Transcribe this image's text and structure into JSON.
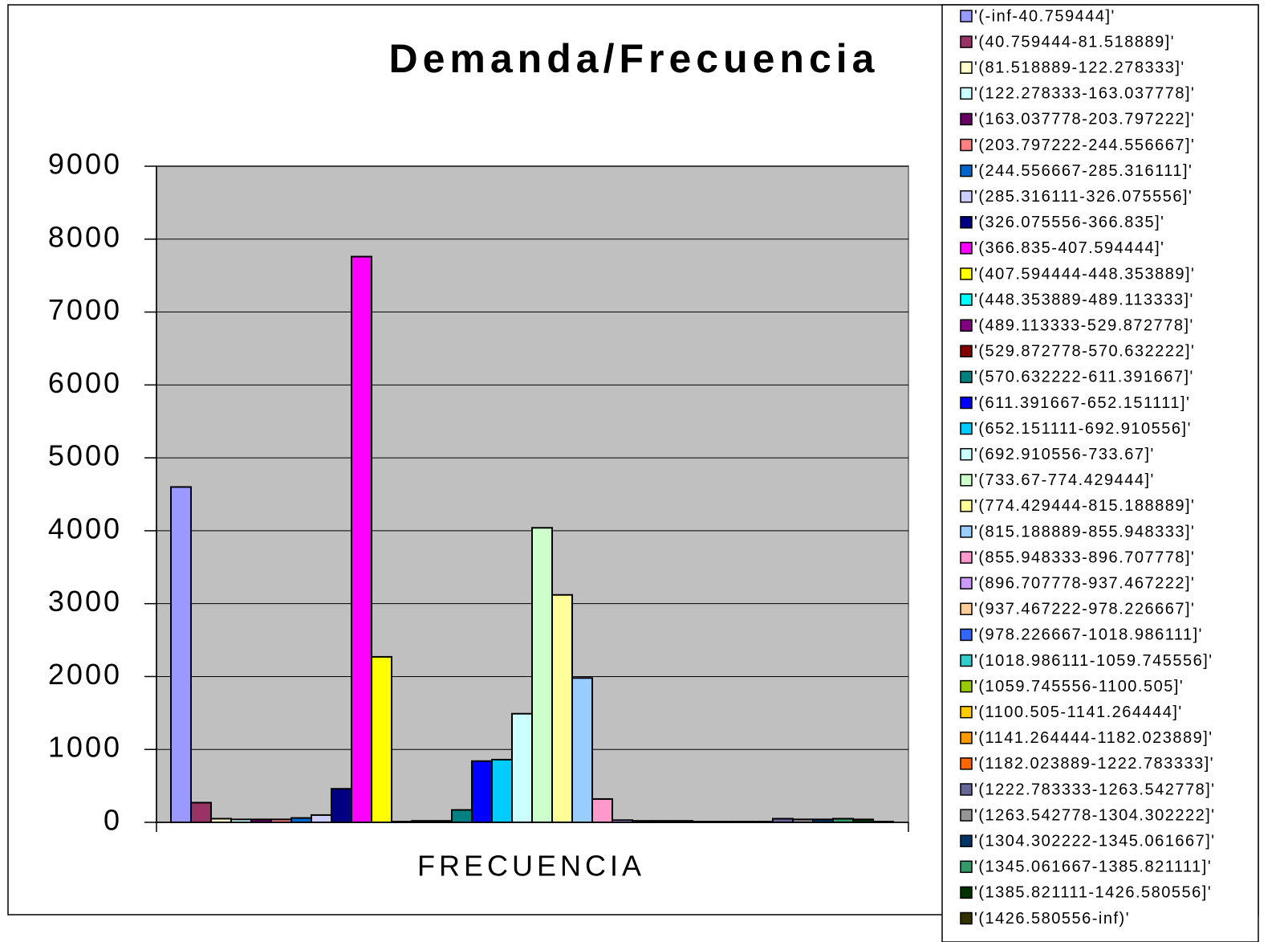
{
  "chart_data": {
    "type": "bar",
    "title": "Demanda/Frecuencia",
    "categories": [
      "FRECUENCIA"
    ],
    "ylim": [
      0,
      9000
    ],
    "yticks": [
      0,
      1000,
      2000,
      3000,
      4000,
      5000,
      6000,
      7000,
      8000,
      9000
    ],
    "grid": true,
    "series": [
      {
        "name": "'(-inf-40.759444]'",
        "color": "#9999ff",
        "values": [
          4600
        ]
      },
      {
        "name": "'(40.759444-81.518889]'",
        "color": "#993366",
        "values": [
          270
        ]
      },
      {
        "name": "'(81.518889-122.278333]'",
        "color": "#ffffcc",
        "values": [
          50
        ]
      },
      {
        "name": "'(122.278333-163.037778]'",
        "color": "#ccffff",
        "values": [
          40
        ]
      },
      {
        "name": "'(163.037778-203.797222]'",
        "color": "#660066",
        "values": [
          40
        ]
      },
      {
        "name": "'(203.797222-244.556667]'",
        "color": "#ff8080",
        "values": [
          40
        ]
      },
      {
        "name": "'(244.556667-285.316111]'",
        "color": "#0066cc",
        "values": [
          60
        ]
      },
      {
        "name": "'(285.316111-326.075556]'",
        "color": "#ccccff",
        "values": [
          100
        ]
      },
      {
        "name": "'(326.075556-366.835]'",
        "color": "#000080",
        "values": [
          460
        ]
      },
      {
        "name": "'(366.835-407.594444]'",
        "color": "#ff00ff",
        "values": [
          7760
        ]
      },
      {
        "name": "'(407.594444-448.353889]'",
        "color": "#ffff00",
        "values": [
          2270
        ]
      },
      {
        "name": "'(448.353889-489.113333]'",
        "color": "#00ffff",
        "values": [
          10
        ]
      },
      {
        "name": "'(489.113333-529.872778]'",
        "color": "#800080",
        "values": [
          20
        ]
      },
      {
        "name": "'(529.872778-570.632222]'",
        "color": "#800000",
        "values": [
          20
        ]
      },
      {
        "name": "'(570.632222-611.391667]'",
        "color": "#008080",
        "values": [
          170
        ]
      },
      {
        "name": "'(611.391667-652.151111]'",
        "color": "#0000ff",
        "values": [
          840
        ]
      },
      {
        "name": "'(652.151111-692.910556]'",
        "color": "#00ccff",
        "values": [
          860
        ]
      },
      {
        "name": "'(692.910556-733.67]'",
        "color": "#ccffff",
        "values": [
          1490
        ]
      },
      {
        "name": "'(733.67-774.429444]'",
        "color": "#ccffcc",
        "values": [
          4040
        ]
      },
      {
        "name": "'(774.429444-815.188889]'",
        "color": "#ffff99",
        "values": [
          3120
        ]
      },
      {
        "name": "'(815.188889-855.948333]'",
        "color": "#99ccff",
        "values": [
          1980
        ]
      },
      {
        "name": "'(855.948333-896.707778]'",
        "color": "#ff99cc",
        "values": [
          320
        ]
      },
      {
        "name": "'(896.707778-937.467222]'",
        "color": "#cc99ff",
        "values": [
          30
        ]
      },
      {
        "name": "'(937.467222-978.226667]'",
        "color": "#ffcc99",
        "values": [
          20
        ]
      },
      {
        "name": "'(978.226667-1018.986111]'",
        "color": "#3366ff",
        "values": [
          20
        ]
      },
      {
        "name": "'(1018.986111-1059.745556]'",
        "color": "#33cccc",
        "values": [
          20
        ]
      },
      {
        "name": "'(1059.745556-1100.505]'",
        "color": "#99cc00",
        "values": [
          10
        ]
      },
      {
        "name": "'(1100.505-1141.264444]'",
        "color": "#ffcc00",
        "values": [
          10
        ]
      },
      {
        "name": "'(1141.264444-1182.023889]'",
        "color": "#ff9900",
        "values": [
          10
        ]
      },
      {
        "name": "'(1182.023889-1222.783333]'",
        "color": "#ff6600",
        "values": [
          10
        ]
      },
      {
        "name": "'(1222.783333-1263.542778]'",
        "color": "#666699",
        "values": [
          50
        ]
      },
      {
        "name": "'(1263.542778-1304.302222]'",
        "color": "#969696",
        "values": [
          40
        ]
      },
      {
        "name": "'(1304.302222-1345.061667]'",
        "color": "#003366",
        "values": [
          40
        ]
      },
      {
        "name": "'(1345.061667-1385.821111]'",
        "color": "#339966",
        "values": [
          50
        ]
      },
      {
        "name": "'(1385.821111-1426.580556]'",
        "color": "#003300",
        "values": [
          40
        ]
      },
      {
        "name": "'(1426.580556-inf)'",
        "color": "#333300",
        "values": [
          10
        ]
      }
    ]
  }
}
